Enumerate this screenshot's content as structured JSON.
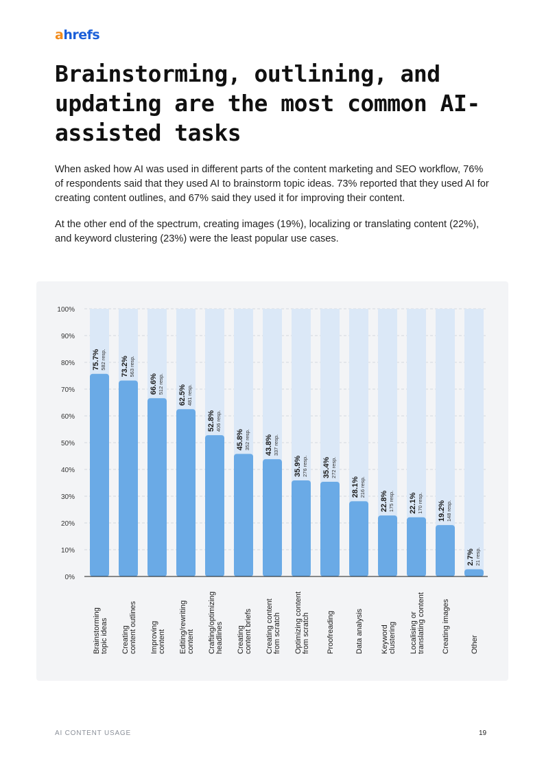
{
  "brand": {
    "logo_prefix": "a",
    "logo_rest": "hrefs",
    "accent": "#f28b1b",
    "brand_color": "#1b5fd8"
  },
  "title": "Brainstorming, outlining, and updating are the most common AI-assisted tasks",
  "paragraphs": [
    "When asked how AI was used in different parts of the content marketing and SEO workflow, 76% of respondents said that they used AI to brainstorm topic ideas. 73% reported that they used AI for creating content outlines, and 67% said they used it for improving their content.",
    "At the other end of the spectrum, creating images (19%), localizing or translating content (22%), and keyword clustering (23%) were the least popular use cases."
  ],
  "colors": {
    "bar": "#6aaae6",
    "bar_background": "#dbe8f7",
    "card": "#f3f4f6"
  },
  "chart_data": {
    "type": "bar",
    "title": "",
    "xlabel": "",
    "ylabel": "",
    "ylim": [
      0,
      100
    ],
    "y_ticks": [
      "0%",
      "10%",
      "20%",
      "30%",
      "40%",
      "50%",
      "60%",
      "70%",
      "80%",
      "90%",
      "100%"
    ],
    "categories": [
      [
        "Brainstorming",
        "topic ideas"
      ],
      [
        "Creating",
        "content outlines"
      ],
      [
        "Improving",
        "content"
      ],
      [
        "Editing/rewriting",
        "content"
      ],
      [
        "Crafting/optimizing",
        "headlines"
      ],
      [
        "Creating",
        "content briefs"
      ],
      [
        "Creating content",
        "from scratch"
      ],
      [
        "Optimizing content",
        "from scratch"
      ],
      [
        "Proofreading"
      ],
      [
        "Data analysis"
      ],
      [
        "Keyword",
        "clustering"
      ],
      [
        "Localising or",
        "translating content"
      ],
      [
        "Creating images"
      ],
      [
        "Other"
      ]
    ],
    "values": [
      75.7,
      73.2,
      66.6,
      62.5,
      52.8,
      45.8,
      43.8,
      35.9,
      35.4,
      28.1,
      22.8,
      22.1,
      19.2,
      2.7
    ],
    "value_labels": [
      "75.7%",
      "73.2%",
      "66.6%",
      "62.5%",
      "52.8%",
      "45.8%",
      "43.8%",
      "35.9%",
      "35.4%",
      "28.1%",
      "22.8%",
      "22.1%",
      "19.2%",
      "2.7%"
    ],
    "responses": [
      "582 resp.",
      "563 resp.",
      "512 resp.",
      "481 resp.",
      "406 resp.",
      "352 resp.",
      "337 resp.",
      "276 resp.",
      "272 resp.",
      "216 resp.",
      "175 resp.",
      "170 resp.",
      "148 resp.",
      "21 resp."
    ]
  },
  "footer": {
    "section": "AI CONTENT USAGE",
    "page_number": "19"
  }
}
